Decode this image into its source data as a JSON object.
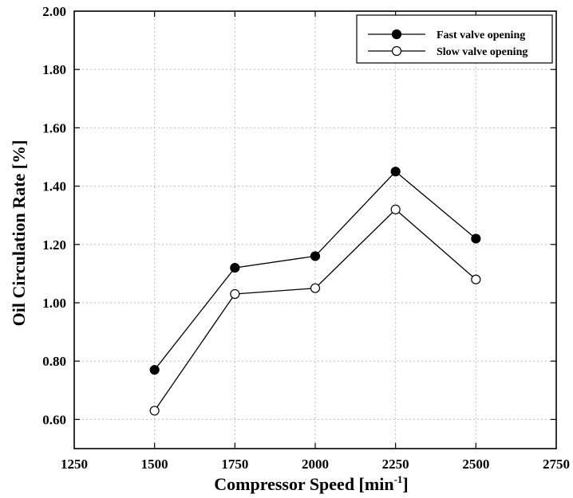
{
  "chart_data": {
    "type": "line",
    "title": "",
    "xlabel": "Compressor Speed [min",
    "xlabel_superscript": "-1",
    "xlabel_suffix": "]",
    "ylabel": "Oil Circulation Rate [%]",
    "x": [
      1500,
      1750,
      2000,
      2250,
      2500
    ],
    "xlim": [
      1250,
      2750
    ],
    "ylim": [
      0.5,
      2.0
    ],
    "x_ticks": [
      1250,
      1500,
      1750,
      2000,
      2250,
      2500,
      2750
    ],
    "x_tick_labels": [
      "1250",
      "1500",
      "1750",
      "2000",
      "2250",
      "2500",
      "2750"
    ],
    "y_ticks": [
      0.6,
      0.8,
      1.0,
      1.2,
      1.4,
      1.6,
      1.8,
      2.0
    ],
    "y_tick_labels": [
      "0.60",
      "0.80",
      "1.00",
      "1.20",
      "1.40",
      "1.60",
      "1.80",
      "2.00"
    ],
    "grid": true,
    "legend_position": "top-right",
    "series": [
      {
        "name": "Fast valve opening",
        "marker": "filled-circle",
        "color": "#000000",
        "values": [
          0.77,
          1.12,
          1.16,
          1.45,
          1.22
        ]
      },
      {
        "name": "Slow valve opening",
        "marker": "open-circle",
        "color": "#000000",
        "values": [
          0.63,
          1.03,
          1.05,
          1.32,
          1.08
        ]
      }
    ]
  }
}
